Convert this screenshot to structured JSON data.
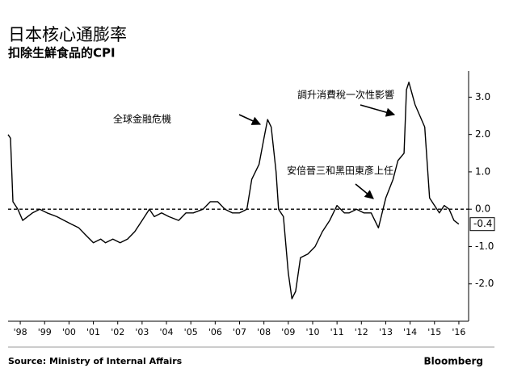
{
  "chart_data": {
    "type": "line",
    "title": "日本核心通膨率",
    "subtitle": "扣除生鮮食品的CPI",
    "source": "Source: Ministry of Internal Affairs",
    "brand": "Bloomberg",
    "annotations": [
      "全球金融危機",
      "調升消費稅一次性影響",
      "安倍晉三和黑田東彥上任"
    ],
    "color": "#000000",
    "x": [
      1998.0,
      1998.1,
      1998.2,
      1998.4,
      1998.6,
      1998.8,
      1999.0,
      1999.3,
      1999.6,
      2000.0,
      2000.3,
      2000.6,
      2000.9,
      2001.2,
      2001.5,
      2001.8,
      2002.0,
      2002.3,
      2002.6,
      2002.9,
      2003.2,
      2003.5,
      2003.8,
      2004.0,
      2004.3,
      2004.6,
      2005.0,
      2005.3,
      2005.6,
      2006.0,
      2006.3,
      2006.6,
      2006.9,
      2007.2,
      2007.5,
      2007.8,
      2008.0,
      2008.3,
      2008.5,
      2008.65,
      2008.8,
      2009.0,
      2009.1,
      2009.3,
      2009.5,
      2009.65,
      2009.8,
      2010.0,
      2010.3,
      2010.6,
      2010.9,
      2011.2,
      2011.5,
      2011.8,
      2012.0,
      2012.3,
      2012.6,
      2012.9,
      2013.2,
      2013.5,
      2013.8,
      2014.0,
      2014.25,
      2014.35,
      2014.45,
      2014.7,
      2014.9,
      2015.1,
      2015.3,
      2015.5,
      2015.7,
      2015.9,
      2016.1,
      2016.3,
      2016.5
    ],
    "values": [
      2.0,
      1.9,
      0.2,
      0.0,
      -0.3,
      -0.2,
      -0.1,
      0.0,
      -0.1,
      -0.2,
      -0.3,
      -0.4,
      -0.5,
      -0.7,
      -0.9,
      -0.8,
      -0.9,
      -0.8,
      -0.9,
      -0.8,
      -0.6,
      -0.3,
      0.0,
      -0.2,
      -0.1,
      -0.2,
      -0.3,
      -0.1,
      -0.1,
      0.0,
      0.2,
      0.2,
      0.0,
      -0.1,
      -0.1,
      0.0,
      0.8,
      1.2,
      1.9,
      2.4,
      2.2,
      1.0,
      0.0,
      -0.2,
      -1.7,
      -2.4,
      -2.2,
      -1.3,
      -1.2,
      -1.0,
      -0.6,
      -0.3,
      0.1,
      -0.1,
      -0.1,
      0.0,
      -0.1,
      -0.1,
      -0.5,
      0.3,
      0.8,
      1.3,
      1.5,
      3.2,
      3.4,
      2.8,
      2.5,
      2.2,
      0.3,
      0.1,
      -0.1,
      0.1,
      0.0,
      -0.3,
      -0.4
    ],
    "xlim": [
      1998.0,
      2016.9
    ],
    "xticks": [
      {
        "value": 1998.5,
        "label": "'98"
      },
      {
        "value": 1999.5,
        "label": "'99"
      },
      {
        "value": 2000.5,
        "label": "'00"
      },
      {
        "value": 2001.5,
        "label": "'01"
      },
      {
        "value": 2002.5,
        "label": "'02"
      },
      {
        "value": 2003.5,
        "label": "'03"
      },
      {
        "value": 2004.5,
        "label": "'04"
      },
      {
        "value": 2005.5,
        "label": "'05"
      },
      {
        "value": 2006.5,
        "label": "'06"
      },
      {
        "value": 2007.5,
        "label": "'07"
      },
      {
        "value": 2008.5,
        "label": "'08"
      },
      {
        "value": 2009.5,
        "label": "'09"
      },
      {
        "value": 2010.5,
        "label": "'10"
      },
      {
        "value": 2011.5,
        "label": "'11"
      },
      {
        "value": 2012.5,
        "label": "'12"
      },
      {
        "value": 2013.5,
        "label": "'13"
      },
      {
        "value": 2014.5,
        "label": "'14"
      },
      {
        "value": 2015.5,
        "label": "'15"
      },
      {
        "value": 2016.5,
        "label": "'16"
      }
    ],
    "ylim": [
      -3.0,
      3.7
    ],
    "yticks": [
      {
        "value": 3,
        "label": "3.0"
      },
      {
        "value": 2,
        "label": "2.0"
      },
      {
        "value": 1,
        "label": "1.0"
      },
      {
        "value": 0,
        "label": "0.0"
      },
      {
        "value": -1,
        "label": "-1.0"
      },
      {
        "value": -2,
        "label": "-2.0"
      }
    ]
  }
}
